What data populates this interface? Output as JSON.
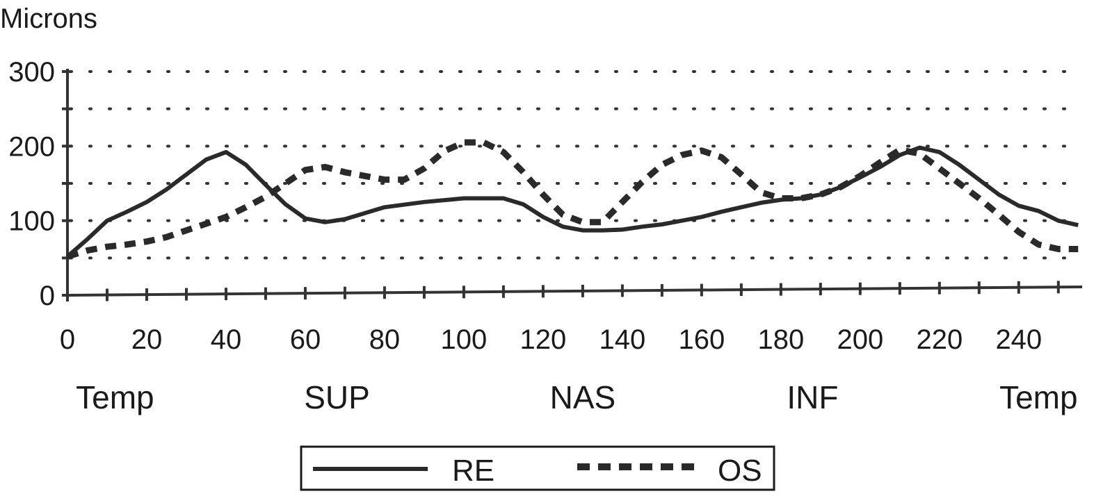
{
  "chart_data": {
    "type": "line",
    "ylabel": "Microns",
    "xlabel": "",
    "x_ticks": [
      0,
      20,
      40,
      60,
      80,
      100,
      120,
      140,
      160,
      180,
      200,
      220,
      240
    ],
    "y_ticks": [
      0,
      100,
      200,
      300
    ],
    "xlim": [
      0,
      256
    ],
    "ylim": [
      0,
      300
    ],
    "grid": "dotted-horizontal",
    "region_labels": [
      {
        "label": "Temp",
        "x": 12
      },
      {
        "label": "SUP",
        "x": 68
      },
      {
        "label": "NAS",
        "x": 130
      },
      {
        "label": "INF",
        "x": 188
      },
      {
        "label": "Temp",
        "x": 245
      }
    ],
    "legend": {
      "placement": "bottom-center"
    },
    "series": [
      {
        "name": "RE",
        "style": "solid",
        "color": "#2a2a2a",
        "points": [
          [
            0,
            52
          ],
          [
            5,
            75
          ],
          [
            10,
            100
          ],
          [
            15,
            112
          ],
          [
            20,
            125
          ],
          [
            25,
            142
          ],
          [
            30,
            162
          ],
          [
            35,
            182
          ],
          [
            40,
            192
          ],
          [
            45,
            175
          ],
          [
            50,
            148
          ],
          [
            55,
            122
          ],
          [
            60,
            103
          ],
          [
            65,
            98
          ],
          [
            70,
            102
          ],
          [
            75,
            110
          ],
          [
            80,
            118
          ],
          [
            90,
            125
          ],
          [
            100,
            130
          ],
          [
            110,
            130
          ],
          [
            115,
            122
          ],
          [
            120,
            105
          ],
          [
            125,
            92
          ],
          [
            130,
            87
          ],
          [
            135,
            87
          ],
          [
            140,
            88
          ],
          [
            145,
            92
          ],
          [
            150,
            95
          ],
          [
            155,
            100
          ],
          [
            160,
            105
          ],
          [
            165,
            112
          ],
          [
            170,
            118
          ],
          [
            175,
            124
          ],
          [
            180,
            128
          ],
          [
            185,
            130
          ],
          [
            190,
            135
          ],
          [
            195,
            145
          ],
          [
            200,
            158
          ],
          [
            205,
            172
          ],
          [
            210,
            188
          ],
          [
            215,
            198
          ],
          [
            220,
            192
          ],
          [
            225,
            175
          ],
          [
            230,
            155
          ],
          [
            235,
            135
          ],
          [
            240,
            120
          ],
          [
            245,
            113
          ],
          [
            250,
            100
          ],
          [
            255,
            94
          ]
        ]
      },
      {
        "name": "OS",
        "style": "dashed",
        "color": "#2a2a2a",
        "points": [
          [
            0,
            52
          ],
          [
            5,
            60
          ],
          [
            10,
            65
          ],
          [
            15,
            68
          ],
          [
            20,
            72
          ],
          [
            25,
            78
          ],
          [
            30,
            87
          ],
          [
            35,
            96
          ],
          [
            40,
            105
          ],
          [
            45,
            118
          ],
          [
            50,
            132
          ],
          [
            55,
            150
          ],
          [
            60,
            168
          ],
          [
            65,
            172
          ],
          [
            70,
            165
          ],
          [
            75,
            160
          ],
          [
            80,
            155
          ],
          [
            85,
            155
          ],
          [
            90,
            170
          ],
          [
            95,
            193
          ],
          [
            100,
            205
          ],
          [
            105,
            205
          ],
          [
            110,
            192
          ],
          [
            115,
            165
          ],
          [
            120,
            135
          ],
          [
            125,
            108
          ],
          [
            130,
            98
          ],
          [
            135,
            98
          ],
          [
            140,
            125
          ],
          [
            145,
            152
          ],
          [
            150,
            175
          ],
          [
            155,
            188
          ],
          [
            160,
            194
          ],
          [
            165,
            185
          ],
          [
            170,
            162
          ],
          [
            175,
            138
          ],
          [
            180,
            130
          ],
          [
            185,
            130
          ],
          [
            190,
            135
          ],
          [
            195,
            145
          ],
          [
            200,
            160
          ],
          [
            205,
            178
          ],
          [
            210,
            195
          ],
          [
            215,
            190
          ],
          [
            220,
            170
          ],
          [
            225,
            150
          ],
          [
            230,
            130
          ],
          [
            235,
            108
          ],
          [
            240,
            85
          ],
          [
            245,
            68
          ],
          [
            250,
            62
          ],
          [
            255,
            62
          ]
        ]
      }
    ]
  }
}
